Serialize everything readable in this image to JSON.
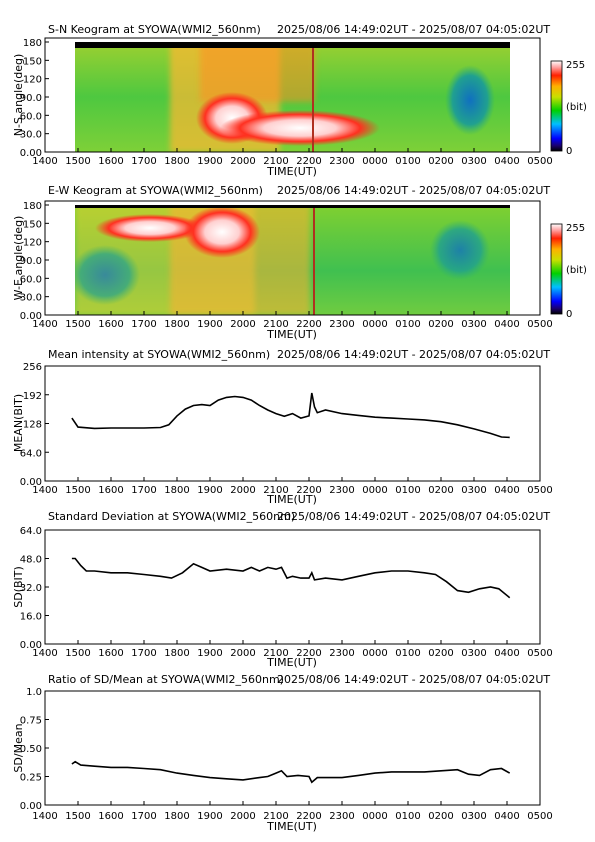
{
  "time_ticks": [
    "1400",
    "1500",
    "1600",
    "1700",
    "1800",
    "1900",
    "2000",
    "2100",
    "2200",
    "2300",
    "0000",
    "0100",
    "0200",
    "0300",
    "0400",
    "0500"
  ],
  "colors": {
    "frame": "#000000",
    "line": "#000000"
  },
  "colorbar": {
    "max_label": "255",
    "unit_label": "(bit)",
    "min_label": "0"
  },
  "charts": [
    {
      "title": "S-N Keogram at SYOWA(WMI2_560nm)",
      "range": "2025/08/06 14:49:02UT - 2025/08/07 04:05:02UT",
      "xlabel": "TIME(UT)",
      "ylabel": "N-S angle(deg)",
      "yticks": [
        "0.00",
        "30.0",
        "60.0",
        "90.0",
        "120",
        "150",
        "180"
      ]
    },
    {
      "title": "E-W Keogram at SYOWA(WMI2_560nm)",
      "range": "2025/08/06 14:49:02UT - 2025/08/07 04:05:02UT",
      "xlabel": "TIME(UT)",
      "ylabel": "W-E angle(deg)",
      "yticks": [
        "0.00",
        "30.0",
        "60.0",
        "90.0",
        "120",
        "150",
        "180"
      ]
    },
    {
      "title": "Mean intensity at SYOWA(WMI2_560nm)",
      "range": "2025/08/06 14:49:02UT - 2025/08/07 04:05:02UT",
      "xlabel": "TIME(UT)",
      "ylabel": "MEAN(BIT)",
      "yticks": [
        "0.00",
        "64.0",
        "128",
        "192",
        "256"
      ]
    },
    {
      "title": "Standard Deviation at SYOWA(WMI2_560nm)",
      "range": "2025/08/06 14:49:02UT - 2025/08/07 04:05:02UT",
      "xlabel": "TIME(UT)",
      "ylabel": "SD(BIT)",
      "yticks": [
        "0.00",
        "16.0",
        "32.0",
        "48.0",
        "64.0"
      ]
    },
    {
      "title": "Ratio of SD/Mean at SYOWA(WMI2_560nm)",
      "range": "2025/08/06 14:49:02UT - 2025/08/07 04:05:02UT",
      "xlabel": "TIME(UT)",
      "ylabel": "SD/Mean",
      "yticks": [
        "0.00",
        "0.25",
        "0.50",
        "0.75",
        "1.0"
      ]
    }
  ],
  "chart_data": [
    {
      "type": "heatmap",
      "title": "S-N Keogram at SYOWA(WMI2_560nm)",
      "xlabel": "TIME(UT)",
      "ylabel": "N-S angle(deg)",
      "xlim": [
        "1400",
        "0500"
      ],
      "ylim": [
        0,
        180
      ],
      "colorbar_range": [
        0,
        255
      ],
      "data_start": "14:49 UT",
      "data_end": "04:05 UT"
    },
    {
      "type": "heatmap",
      "title": "E-W Keogram at SYOWA(WMI2_560nm)",
      "xlabel": "TIME(UT)",
      "ylabel": "W-E angle(deg)",
      "xlim": [
        "1400",
        "0500"
      ],
      "ylim": [
        0,
        180
      ],
      "colorbar_range": [
        0,
        255
      ],
      "data_start": "14:49 UT",
      "data_end": "04:05 UT"
    },
    {
      "type": "line",
      "title": "Mean intensity at SYOWA(WMI2_560nm)",
      "xlabel": "TIME(UT)",
      "ylabel": "MEAN(BIT)",
      "ylim": [
        0,
        256
      ],
      "x": [
        "14:49",
        "15:00",
        "15:30",
        "16:00",
        "16:30",
        "17:00",
        "17:30",
        "17:45",
        "18:00",
        "18:15",
        "18:30",
        "18:45",
        "19:00",
        "19:15",
        "19:30",
        "19:45",
        "20:00",
        "20:15",
        "20:30",
        "20:45",
        "21:00",
        "21:15",
        "21:30",
        "21:45",
        "22:00",
        "22:05",
        "22:10",
        "22:15",
        "22:30",
        "23:00",
        "23:30",
        "00:00",
        "00:30",
        "01:00",
        "01:30",
        "02:00",
        "02:30",
        "03:00",
        "03:30",
        "03:50",
        "04:05"
      ],
      "values": [
        140,
        120,
        117,
        118,
        118,
        118,
        119,
        125,
        145,
        160,
        168,
        170,
        168,
        180,
        186,
        188,
        186,
        180,
        168,
        158,
        150,
        144,
        150,
        140,
        145,
        196,
        165,
        152,
        158,
        150,
        146,
        142,
        140,
        138,
        136,
        132,
        125,
        116,
        106,
        98,
        97
      ]
    },
    {
      "type": "line",
      "title": "Standard Deviation at SYOWA(WMI2_560nm)",
      "xlabel": "TIME(UT)",
      "ylabel": "SD(BIT)",
      "ylim": [
        0,
        64
      ],
      "x": [
        "14:49",
        "14:55",
        "15:05",
        "15:15",
        "15:30",
        "16:00",
        "16:30",
        "17:00",
        "17:30",
        "17:50",
        "18:10",
        "18:30",
        "18:45",
        "19:00",
        "19:30",
        "20:00",
        "20:15",
        "20:30",
        "20:45",
        "21:00",
        "21:10",
        "21:20",
        "21:30",
        "21:45",
        "22:00",
        "22:05",
        "22:10",
        "22:30",
        "23:00",
        "23:30",
        "00:00",
        "00:30",
        "01:00",
        "01:30",
        "01:50",
        "02:10",
        "02:30",
        "02:50",
        "03:10",
        "03:30",
        "03:45",
        "04:05"
      ],
      "values": [
        48,
        48,
        44,
        41,
        41,
        40,
        40,
        39,
        38,
        37,
        40,
        45,
        43,
        41,
        42,
        41,
        43,
        41,
        43,
        42,
        43,
        37,
        38,
        37,
        37,
        40,
        36,
        37,
        36,
        38,
        40,
        41,
        41,
        40,
        39,
        35,
        30,
        29,
        31,
        32,
        31,
        26
      ]
    },
    {
      "type": "line",
      "title": "Ratio of SD/Mean at SYOWA(WMI2_560nm)",
      "xlabel": "TIME(UT)",
      "ylabel": "SD/Mean",
      "ylim": [
        0,
        1.0
      ],
      "x": [
        "14:49",
        "14:55",
        "15:05",
        "15:30",
        "16:00",
        "16:30",
        "17:00",
        "17:30",
        "18:00",
        "18:30",
        "19:00",
        "19:30",
        "20:00",
        "20:30",
        "20:45",
        "21:00",
        "21:10",
        "21:20",
        "21:40",
        "22:00",
        "22:05",
        "22:15",
        "22:30",
        "23:00",
        "23:30",
        "00:00",
        "00:30",
        "01:00",
        "01:30",
        "02:00",
        "02:30",
        "02:50",
        "03:10",
        "03:30",
        "03:50",
        "04:05"
      ],
      "values": [
        0.36,
        0.38,
        0.35,
        0.34,
        0.33,
        0.33,
        0.32,
        0.31,
        0.28,
        0.26,
        0.24,
        0.23,
        0.22,
        0.24,
        0.25,
        0.28,
        0.3,
        0.25,
        0.26,
        0.25,
        0.2,
        0.24,
        0.24,
        0.24,
        0.26,
        0.28,
        0.29,
        0.29,
        0.29,
        0.3,
        0.31,
        0.27,
        0.26,
        0.31,
        0.32,
        0.28
      ]
    }
  ]
}
